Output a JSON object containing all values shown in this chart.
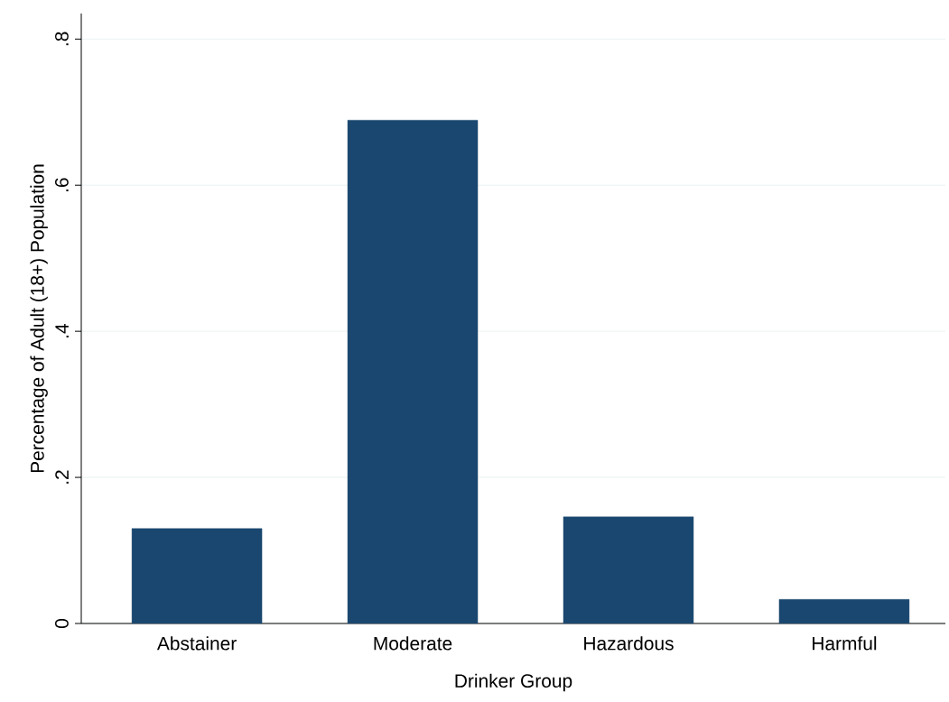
{
  "chart_data": {
    "type": "bar",
    "categories": [
      "Abstainer",
      "Moderate",
      "Hazardous",
      "Harmful"
    ],
    "values": [
      0.13,
      0.689,
      0.146,
      0.033
    ],
    "color": "#1a476f",
    "xlabel": "Drinker Group",
    "ylabel": "Percentage of Adult (18+) Population",
    "ylim": [
      0,
      0.835
    ],
    "yticks": [
      0,
      {
        "value": 0.2,
        "label": ".2"
      },
      {
        "value": 0.4,
        "label": ".4"
      },
      {
        "value": 0.6,
        "label": ".6"
      },
      {
        "value": 0.8,
        "label": ".8"
      }
    ],
    "grid": "y"
  }
}
